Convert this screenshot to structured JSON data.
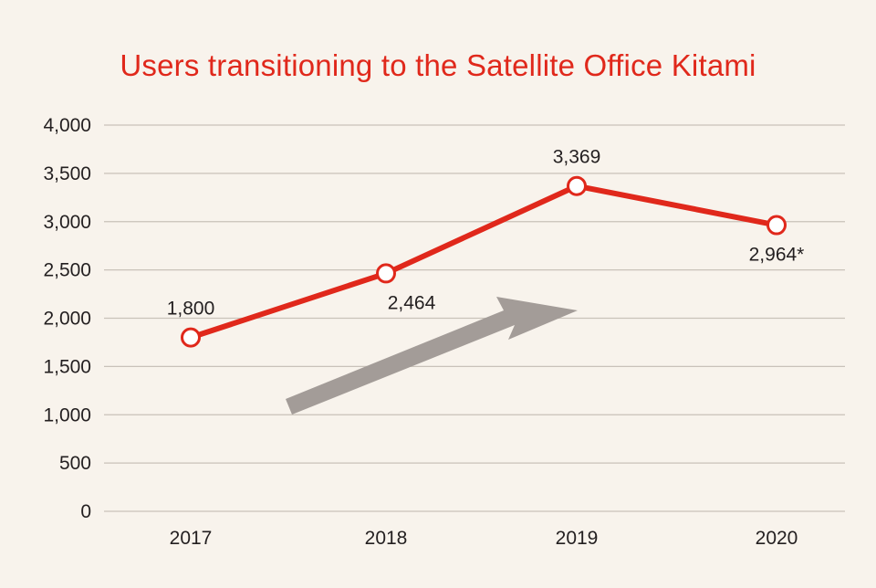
{
  "colors": {
    "background": "#f8f3ec",
    "accent": "#e0281b",
    "text": "#231f20",
    "grid": "#c9c2b9",
    "arrow": "#a39c98",
    "marker_fill": "#ffffff"
  },
  "chart_data": {
    "type": "line",
    "title": "Users transitioning to the Satellite Office Kitami",
    "xlabel": "",
    "ylabel": "",
    "categories": [
      "2017",
      "2018",
      "2019",
      "2020"
    ],
    "series": [
      {
        "name": "Users",
        "values": [
          1800,
          2464,
          3369,
          2964
        ],
        "labels": [
          "1,800",
          "2,464",
          "3,369",
          "2,964*"
        ],
        "label_positions": [
          "above",
          "below",
          "above",
          "below"
        ]
      }
    ],
    "ylim": [
      0,
      4000
    ],
    "yticks": [
      0,
      500,
      1000,
      1500,
      2000,
      2500,
      3000,
      3500,
      4000
    ],
    "ytick_labels": [
      "0",
      "500",
      "1,000",
      "1,500",
      "2,000",
      "2,500",
      "3,000",
      "3,500",
      "4,000"
    ],
    "grid": true,
    "annotations": [
      {
        "type": "trend-arrow",
        "description": "upward trend arrow"
      }
    ]
  }
}
